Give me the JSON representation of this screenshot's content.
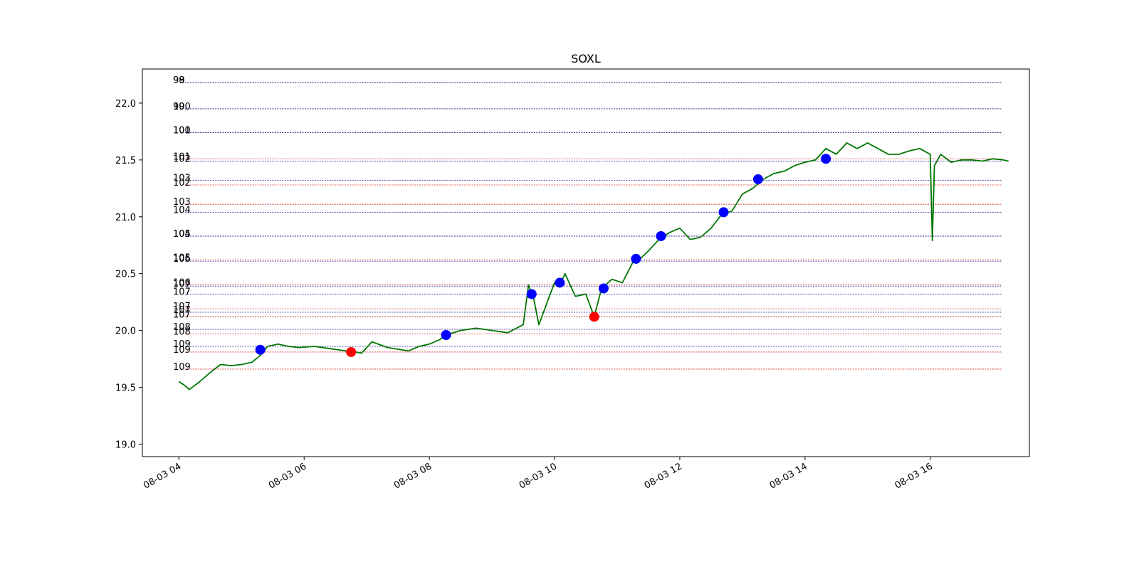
{
  "chart_data": {
    "type": "line",
    "title": "SOXL",
    "xlabel": "",
    "ylabel": "",
    "x_ticks": [
      "08-03 04",
      "08-03 06",
      "08-03 08",
      "08-03 10",
      "08-03 12",
      "08-03 14",
      "08-03 16"
    ],
    "xlim": [
      "08-03 03:25",
      "08-03 17:35"
    ],
    "ylim": [
      18.89,
      22.3
    ],
    "y_ticks": [
      19.0,
      19.5,
      20.0,
      20.5,
      21.0,
      21.5,
      22.0
    ],
    "grid": false,
    "line_color": "#007700",
    "series": [
      {
        "x": [
          "08-03 04:00",
          "08-03 04:05",
          "08-03 04:10",
          "08-03 04:20",
          "08-03 04:30",
          "08-03 04:40",
          "08-03 04:50",
          "08-03 05:00",
          "08-03 05:10",
          "08-03 05:18",
          "08-03 05:25",
          "08-03 05:35",
          "08-03 05:45",
          "08-03 05:55",
          "08-03 06:10",
          "08-03 06:25",
          "08-03 06:40",
          "08-03 06:45",
          "08-03 06:55",
          "08-03 07:05",
          "08-03 07:20",
          "08-03 07:40",
          "08-03 07:50",
          "08-03 08:00",
          "08-03 08:10",
          "08-03 08:16",
          "08-03 08:30",
          "08-03 08:45",
          "08-03 09:00",
          "08-03 09:15",
          "08-03 09:30",
          "08-03 09:35",
          "08-03 09:40",
          "08-03 09:45",
          "08-03 09:55",
          "08-03 10:00",
          "08-03 10:05",
          "08-03 10:10",
          "08-03 10:15",
          "08-03 10:20",
          "08-03 10:30",
          "08-03 10:38",
          "08-03 10:45",
          "08-03 10:55",
          "08-03 11:05",
          "08-03 11:15",
          "08-03 11:22",
          "08-03 11:30",
          "08-03 11:40",
          "08-03 11:50",
          "08-03 12:00",
          "08-03 12:10",
          "08-03 12:20",
          "08-03 12:30",
          "08-03 12:40",
          "08-03 12:50",
          "08-03 13:00",
          "08-03 13:10",
          "08-03 13:20",
          "08-03 13:30",
          "08-03 13:40",
          "08-03 13:50",
          "08-03 14:00",
          "08-03 14:10",
          "08-03 14:20",
          "08-03 14:30",
          "08-03 14:40",
          "08-03 14:50",
          "08-03 15:00",
          "08-03 15:10",
          "08-03 15:20",
          "08-03 15:30",
          "08-03 15:40",
          "08-03 15:50",
          "08-03 16:00",
          "08-03 16:02",
          "08-03 16:04",
          "08-03 16:10",
          "08-03 16:20",
          "08-03 16:30",
          "08-03 16:40",
          "08-03 16:50",
          "08-03 17:00",
          "08-03 17:10",
          "08-03 17:15"
        ],
        "values": [
          19.55,
          19.52,
          19.48,
          19.55,
          19.63,
          19.7,
          19.69,
          19.7,
          19.72,
          19.78,
          19.86,
          19.88,
          19.86,
          19.85,
          19.86,
          19.84,
          19.82,
          19.82,
          19.8,
          19.9,
          19.85,
          19.82,
          19.86,
          19.88,
          19.92,
          19.96,
          20.0,
          20.02,
          20.0,
          19.98,
          20.05,
          20.4,
          20.28,
          20.05,
          20.3,
          20.42,
          20.4,
          20.5,
          20.4,
          20.3,
          20.32,
          20.12,
          20.37,
          20.45,
          20.42,
          20.6,
          20.63,
          20.7,
          20.8,
          20.86,
          20.9,
          20.8,
          20.82,
          20.9,
          21.02,
          21.05,
          21.2,
          21.25,
          21.33,
          21.38,
          21.4,
          21.45,
          21.48,
          21.5,
          21.6,
          21.55,
          21.65,
          21.6,
          21.65,
          21.6,
          21.55,
          21.55,
          21.58,
          21.6,
          21.55,
          20.79,
          21.45,
          21.55,
          21.48,
          21.5,
          21.5,
          21.49,
          21.51,
          21.5,
          21.49
        ]
      }
    ],
    "markers": [
      {
        "x": "08-03 05:18",
        "y": 19.83,
        "color": "blue"
      },
      {
        "x": "08-03 06:45",
        "y": 19.81,
        "color": "red"
      },
      {
        "x": "08-03 08:16",
        "y": 19.96,
        "color": "blue"
      },
      {
        "x": "08-03 09:38",
        "y": 20.32,
        "color": "blue"
      },
      {
        "x": "08-03 10:05",
        "y": 20.42,
        "color": "blue"
      },
      {
        "x": "08-03 10:38",
        "y": 20.12,
        "color": "red"
      },
      {
        "x": "08-03 10:47",
        "y": 20.37,
        "color": "blue"
      },
      {
        "x": "08-03 11:18",
        "y": 20.63,
        "color": "blue"
      },
      {
        "x": "08-03 11:42",
        "y": 20.83,
        "color": "blue"
      },
      {
        "x": "08-03 12:42",
        "y": 21.04,
        "color": "blue"
      },
      {
        "x": "08-03 13:15",
        "y": 21.33,
        "color": "blue"
      },
      {
        "x": "08-03 14:20",
        "y": 21.51,
        "color": "blue"
      }
    ],
    "levels": [
      {
        "y": 22.18,
        "color": "#d62728",
        "label": "98"
      },
      {
        "y": 22.18,
        "color": "#1f1fa0",
        "label": "99"
      },
      {
        "y": 21.95,
        "color": "#d62728",
        "label": "99"
      },
      {
        "y": 21.95,
        "color": "#1f1fa0",
        "label": "100"
      },
      {
        "y": 21.74,
        "color": "#d62728",
        "label": "100"
      },
      {
        "y": 21.74,
        "color": "#1f1fa0",
        "label": "101"
      },
      {
        "y": 21.51,
        "color": "#d62728",
        "label": "101"
      },
      {
        "y": 21.49,
        "color": "#1f1fa0",
        "label": "102"
      },
      {
        "y": 21.32,
        "color": "#1f1fa0",
        "label": "103"
      },
      {
        "y": 21.28,
        "color": "#d62728",
        "label": "102"
      },
      {
        "y": 21.11,
        "color": "#d62728",
        "label": "103"
      },
      {
        "y": 21.04,
        "color": "#1f1fa0",
        "label": "104"
      },
      {
        "y": 20.83,
        "color": "#d62728",
        "label": "104"
      },
      {
        "y": 20.83,
        "color": "#1f1fa0",
        "label": "105"
      },
      {
        "y": 20.62,
        "color": "#d62728",
        "label": "105"
      },
      {
        "y": 20.61,
        "color": "#1f1fa0",
        "label": "106"
      },
      {
        "y": 20.4,
        "color": "#d62728",
        "label": "106"
      },
      {
        "y": 20.39,
        "color": "#1f1fa0",
        "label": "107"
      },
      {
        "y": 20.32,
        "color": "#1f1fa0",
        "label": "107"
      },
      {
        "y": 20.19,
        "color": "#d62728",
        "label": "107"
      },
      {
        "y": 20.16,
        "color": "#1f1fa0",
        "label": "107"
      },
      {
        "y": 20.12,
        "color": "#d62728",
        "label": "107"
      },
      {
        "y": 20.01,
        "color": "#1f1fa0",
        "label": "108"
      },
      {
        "y": 19.97,
        "color": "#d62728",
        "label": "108"
      },
      {
        "y": 19.86,
        "color": "#1f1fa0",
        "label": "109"
      },
      {
        "y": 19.81,
        "color": "#d62728",
        "label": "109"
      },
      {
        "y": 19.66,
        "color": "#d62728",
        "label": "109"
      }
    ]
  }
}
